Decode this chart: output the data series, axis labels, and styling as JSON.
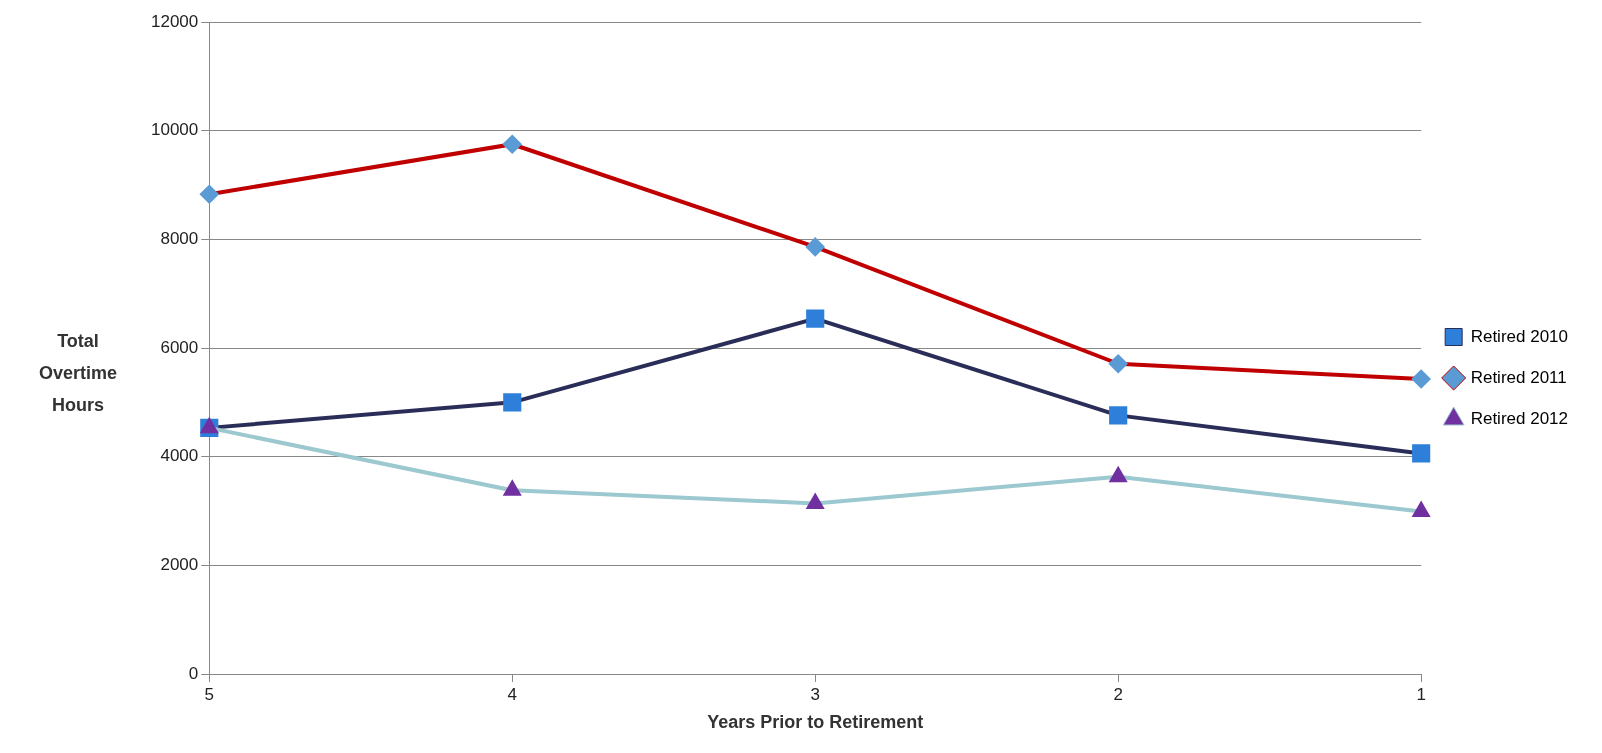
{
  "chart_data": {
    "type": "line",
    "xlabel": "Years Prior to Retirement",
    "ylabel": "Total Overtime Hours",
    "categories": [
      "5",
      "4",
      "3",
      "2",
      "1"
    ],
    "series": [
      {
        "name": "Retired 2010",
        "color": "#2a2d57",
        "colors": [
          "#2e7fd9",
          "#2e7fd9",
          "#2e7fd9",
          "#2e7fd9",
          "#2e7fd9"
        ],
        "marker": "square",
        "values": [
          4530,
          5000,
          6540,
          4760,
          4060
        ]
      },
      {
        "name": "Retired 2011",
        "color": "#c00000",
        "colors": [
          "#5b9bd5",
          "#5b9bd5",
          "#5b9bd5",
          "#5b9bd5",
          "#5b9bd5"
        ],
        "marker": "diamond",
        "values": [
          8830,
          9750,
          7860,
          5710,
          5430
        ]
      },
      {
        "name": "Retired 2012",
        "color": "#9cc8cf",
        "colors": [
          "#7030a0",
          "#7030a0",
          "#7030a0",
          "#7030a0",
          "#7030a0"
        ],
        "marker": "triangle",
        "values": [
          4530,
          3380,
          3140,
          3630,
          2990
        ]
      }
    ],
    "ylim": [
      0,
      12000
    ],
    "yticks": [
      0,
      2000,
      4000,
      6000,
      8000,
      10000,
      12000
    ],
    "grid": "y",
    "legend": "right",
    "line_style": "solid"
  }
}
